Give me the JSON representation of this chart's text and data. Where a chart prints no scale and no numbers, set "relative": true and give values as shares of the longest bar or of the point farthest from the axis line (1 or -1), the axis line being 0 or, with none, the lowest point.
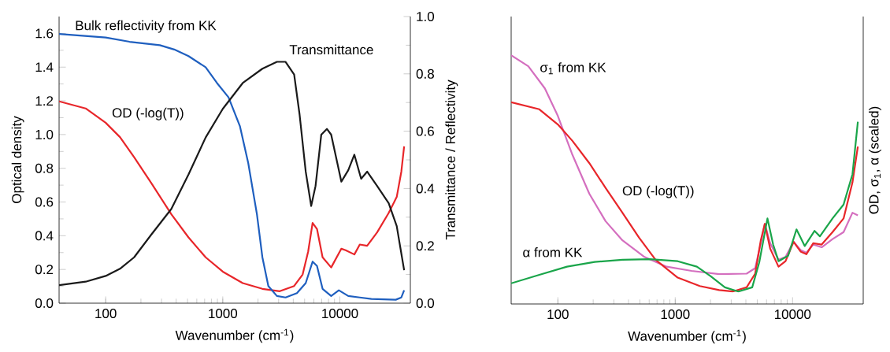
{
  "chart_data": [
    {
      "type": "line",
      "log": "x",
      "xlabel": "Wavenumber (cm$^{-1}$)",
      "ylabel": "Optical density",
      "y2label": "Transmittance / Reflectivity",
      "xlim": [
        40,
        40000
      ],
      "xticks": [
        100,
        1000,
        10000
      ],
      "ylim": [
        0,
        1.7
      ],
      "yticks": [
        {
          "value": 0,
          "label": "0.0"
        },
        0.2,
        0.4,
        0.6,
        0.8,
        {
          "value": 1,
          "label": "1.0"
        },
        1.2,
        1.4,
        1.6
      ],
      "y2lim": [
        0,
        1.0
      ],
      "y2ticks": [
        {
          "value": 0,
          "label": "0.0"
        },
        0.2,
        0.4,
        0.6,
        0.8,
        {
          "value": 1,
          "label": "1.0"
        }
      ],
      "marker": "none",
      "line_style": "solid",
      "series": [
        {
          "name": "Bulk reflectivity from KK",
          "color": "#1f5fbf",
          "axis": "y2",
          "x": [
            40,
            100,
            160,
            290,
            385,
            510,
            714,
            893,
            1120,
            1400,
            1650,
            1960,
            2180,
            2450,
            2900,
            3440,
            4300,
            5110,
            5850,
            6380,
            7120,
            8430,
            9800,
            11800,
            14800,
            18600,
            30000,
            33500,
            35400
          ],
          "values": [
            0.939,
            0.927,
            0.912,
            0.9,
            0.885,
            0.862,
            0.823,
            0.768,
            0.718,
            0.618,
            0.489,
            0.309,
            0.16,
            0.06,
            0.025,
            0.02,
            0.035,
            0.07,
            0.145,
            0.13,
            0.05,
            0.025,
            0.045,
            0.025,
            0.02,
            0.015,
            0.012,
            0.02,
            0.045
          ]
        },
        {
          "name": "Transmittance",
          "color": "#1a1a1a",
          "axis": "y2",
          "x": [
            40,
            67.5,
            100,
            132.5,
            175,
            245,
            364,
            510,
            714,
            1000,
            1480,
            2180,
            2900,
            3440,
            4070,
            4530,
            5110,
            5690,
            6200,
            6940,
            7750,
            8430,
            10300,
            11800,
            13300,
            15200,
            17100,
            20800,
            26100,
            30600,
            35400
          ],
          "values": [
            0.063,
            0.075,
            0.095,
            0.12,
            0.16,
            0.239,
            0.329,
            0.449,
            0.578,
            0.678,
            0.768,
            0.818,
            0.842,
            0.842,
            0.798,
            0.658,
            0.459,
            0.339,
            0.409,
            0.588,
            0.608,
            0.588,
            0.424,
            0.464,
            0.518,
            0.434,
            0.459,
            0.409,
            0.349,
            0.269,
            0.115
          ]
        },
        {
          "name": "OD (-log(T))",
          "color": "#e8262a",
          "axis": "y",
          "x": [
            40,
            67.5,
            100,
            132.5,
            175,
            245,
            364,
            510,
            714,
            1000,
            1480,
            2180,
            3070,
            4070,
            4810,
            5360,
            5850,
            6380,
            7120,
            8430,
            10300,
            11200,
            13300,
            14800,
            17100,
            20800,
            26100,
            30600,
            33500,
            35400
          ],
          "values": [
            1.197,
            1.155,
            1.07,
            0.985,
            0.866,
            0.713,
            0.527,
            0.39,
            0.272,
            0.187,
            0.119,
            0.085,
            0.071,
            0.102,
            0.17,
            0.306,
            0.476,
            0.44,
            0.272,
            0.212,
            0.323,
            0.314,
            0.289,
            0.348,
            0.34,
            0.42,
            0.535,
            0.63,
            0.78,
            0.93
          ]
        }
      ]
    },
    {
      "type": "line",
      "log": "x",
      "relative": true,
      "tick_labels": "x",
      "xlabel": "Wavenumber (cm$^{-1}$)",
      "ylabel": "OD, σ$_{1}$, α (scaled)",
      "xlim": [
        40,
        40000
      ],
      "xticks": [
        100,
        1000,
        10000
      ],
      "marker": "none",
      "line_style": "solid",
      "series": [
        {
          "name": "σ$_{1}$ from KK",
          "color": "#d46fbf",
          "x": [
            40,
            56,
            77.5,
            100,
            133,
            185,
            255,
            355,
            547,
            846,
            1380,
            2370,
            4060,
            4800,
            5360,
            5800,
            6450,
            7590,
            8710,
            10200,
            11700,
            13100,
            15000,
            17700,
            21900,
            27200,
            32400,
            36000
          ],
          "values": [
            1.0,
            0.956,
            0.867,
            0.756,
            0.6,
            0.444,
            0.333,
            0.256,
            0.189,
            0.15,
            0.133,
            0.12,
            0.122,
            0.144,
            0.244,
            0.322,
            0.244,
            0.178,
            0.189,
            0.25,
            0.217,
            0.206,
            0.239,
            0.228,
            0.261,
            0.289,
            0.367,
            0.356
          ]
        },
        {
          "name": "OD (-log(T))",
          "color": "#e8262a",
          "x": [
            40,
            69.5,
            100,
            133,
            185,
            255,
            355,
            491,
            680,
            1050,
            1620,
            2370,
            3090,
            4060,
            4800,
            5360,
            5800,
            6450,
            7590,
            8710,
            10200,
            11700,
            13100,
            15000,
            17700,
            21900,
            27200,
            32400,
            36000
          ],
          "values": [
            0.811,
            0.783,
            0.722,
            0.656,
            0.567,
            0.467,
            0.367,
            0.267,
            0.178,
            0.106,
            0.072,
            0.056,
            0.05,
            0.067,
            0.122,
            0.256,
            0.322,
            0.222,
            0.15,
            0.172,
            0.25,
            0.211,
            0.2,
            0.244,
            0.239,
            0.289,
            0.344,
            0.489,
            0.633
          ]
        },
        {
          "name": "α from KK",
          "color": "#1aa54a",
          "x": [
            40,
            69.5,
            119.6,
            206,
            355,
            609,
            1050,
            1530,
            2010,
            2650,
            3450,
            4530,
            5200,
            6110,
            6830,
            7590,
            9170,
            10800,
            12700,
            15400,
            17100,
            21900,
            27200,
            32400,
            36000
          ],
          "values": [
            0.083,
            0.117,
            0.15,
            0.169,
            0.178,
            0.18,
            0.172,
            0.15,
            0.111,
            0.067,
            0.05,
            0.067,
            0.167,
            0.344,
            0.239,
            0.172,
            0.194,
            0.3,
            0.233,
            0.294,
            0.272,
            0.344,
            0.4,
            0.522,
            0.733
          ]
        }
      ]
    }
  ]
}
